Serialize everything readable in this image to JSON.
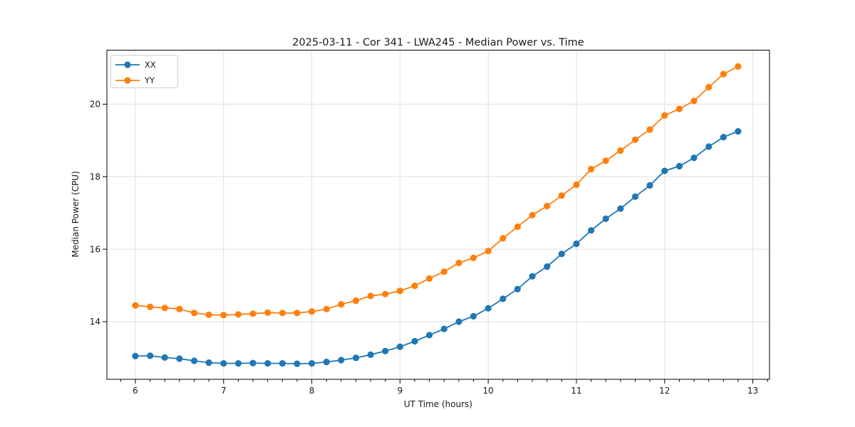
{
  "title": "2025-03-11 - Cor 341 - LWA245 - Median Power vs. Time",
  "colors": {
    "background": "#ffffff",
    "grid": "#e0e0e0",
    "spine": "#000000",
    "text": "#1a1a1a",
    "series_xx": "#1f77b4",
    "series_yy": "#ff7f0e",
    "legend_border": "#cccccc"
  },
  "legend": {
    "position": "upper-left",
    "entries": [
      {
        "label": "XX",
        "color": "#1f77b4"
      },
      {
        "label": "YY",
        "color": "#ff7f0e"
      }
    ]
  },
  "chart_data": {
    "type": "line",
    "title": "2025-03-11 - Cor 341 - LWA245 - Median Power vs. Time",
    "xlabel": "UT Time (hours)",
    "ylabel": "Median Power (CPU)",
    "xlim": [
      5.677,
      13.189
    ],
    "ylim": [
      12.41,
      21.49
    ],
    "xticks": [
      6,
      7,
      8,
      9,
      10,
      11,
      12,
      13
    ],
    "yticks": [
      14,
      16,
      18,
      20
    ],
    "x_minor_step_hours": 0.16667,
    "grid": true,
    "legend_position": "upper-left",
    "marker": "o",
    "x": [
      6.0,
      6.167,
      6.333,
      6.5,
      6.667,
      6.833,
      7.0,
      7.167,
      7.333,
      7.5,
      7.667,
      7.833,
      8.0,
      8.167,
      8.333,
      8.5,
      8.667,
      8.833,
      9.0,
      9.167,
      9.333,
      9.5,
      9.667,
      9.833,
      10.0,
      10.167,
      10.333,
      10.5,
      10.667,
      10.833,
      11.0,
      11.167,
      11.333,
      11.5,
      11.667,
      11.833,
      12.0,
      12.167,
      12.333,
      12.5,
      12.667,
      12.833
    ],
    "series": [
      {
        "name": "XX",
        "color": "#1f77b4",
        "values": [
          13.05,
          13.06,
          13.01,
          12.98,
          12.92,
          12.87,
          12.85,
          12.85,
          12.86,
          12.85,
          12.85,
          12.84,
          12.85,
          12.89,
          12.94,
          13.0,
          13.09,
          13.19,
          13.31,
          13.46,
          13.63,
          13.8,
          14.0,
          14.15,
          14.37,
          14.63,
          14.9,
          15.25,
          15.52,
          15.87,
          16.15,
          16.52,
          16.84,
          17.12,
          17.45,
          17.76,
          18.16,
          18.29,
          18.52,
          18.83,
          19.09,
          19.25
        ]
      },
      {
        "name": "YY",
        "color": "#ff7f0e",
        "values": [
          14.45,
          14.41,
          14.38,
          14.35,
          14.24,
          14.19,
          14.18,
          14.2,
          14.22,
          14.25,
          14.24,
          14.24,
          14.28,
          14.35,
          14.48,
          14.58,
          14.71,
          14.76,
          14.85,
          14.99,
          15.19,
          15.38,
          15.62,
          15.76,
          15.95,
          16.3,
          16.62,
          16.94,
          17.19,
          17.48,
          17.78,
          18.21,
          18.44,
          18.72,
          19.02,
          19.3,
          19.69,
          19.87,
          20.09,
          20.47,
          20.83,
          21.04
        ]
      }
    ]
  }
}
